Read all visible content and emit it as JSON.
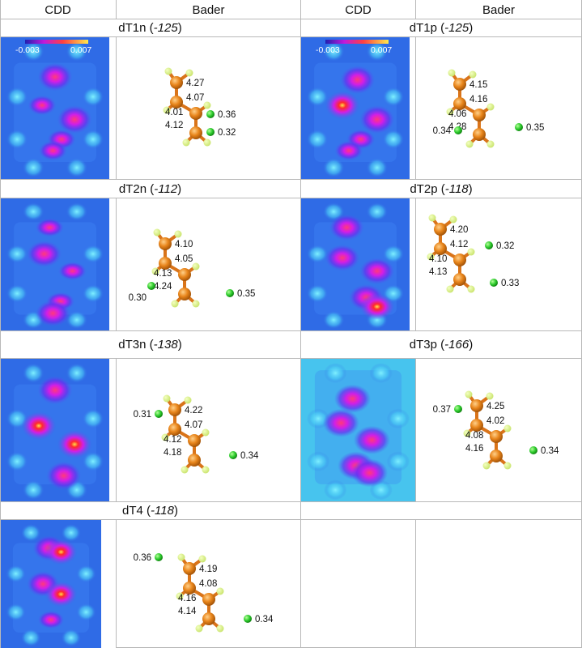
{
  "headers": {
    "cdd_left": "CDD",
    "bader_left": "Bader",
    "cdd_right": "CDD",
    "bader_right": "Bader"
  },
  "colorbar": {
    "min": "-0.003",
    "max": "0.007"
  },
  "systems": [
    {
      "id": "dT1n",
      "energy": "-125",
      "charges": {
        "c1": "4.27",
        "c2": "4.07",
        "c3": "4.01",
        "c4": "4.12"
      },
      "dots": [
        "0.36",
        "0.32"
      ]
    },
    {
      "id": "dT1p",
      "energy": "-125",
      "charges": {
        "c1": "4.15",
        "c2": "4.16",
        "c3": "4.06",
        "c4": "4.28"
      },
      "dots": [
        "0.34",
        "0.35"
      ]
    },
    {
      "id": "dT2n",
      "energy": "-112",
      "charges": {
        "c1": "4.10",
        "c2": "4.05",
        "c3": "4.13",
        "c4": "4.24"
      },
      "dots": [
        "0.30",
        "0.35"
      ]
    },
    {
      "id": "dT2p",
      "energy": "-118",
      "charges": {
        "c1": "4.20",
        "c2": "4.12",
        "c3": "4.10",
        "c4": "4.13"
      },
      "dots": [
        "0.32",
        "0.33"
      ]
    },
    {
      "id": "dT3n",
      "energy": "-138",
      "charges": {
        "c1": "4.22",
        "c2": "4.07",
        "c3": "4.12",
        "c4": "4.18"
      },
      "dots": [
        "0.31",
        "0.34"
      ]
    },
    {
      "id": "dT3p",
      "energy": "-166",
      "charges": {
        "c1": "4.25",
        "c2": "4.02",
        "c3": "4.08",
        "c4": "4.16"
      },
      "dots": [
        "0.37",
        "0.34"
      ]
    },
    {
      "id": "dT4",
      "energy": "-118",
      "charges": {
        "c1": "4.19",
        "c2": "4.08",
        "c3": "4.16",
        "c4": "4.14"
      },
      "dots": [
        "0.36",
        "0.34"
      ]
    }
  ],
  "colors": {
    "map_background": "#2f6be6",
    "map_background_light": "#47c4ee",
    "carbon": "#e8851b",
    "hydrogen": "#c8e36a",
    "bader_dot": "#2ecc2e",
    "grid_line": "#b9b9b9"
  }
}
